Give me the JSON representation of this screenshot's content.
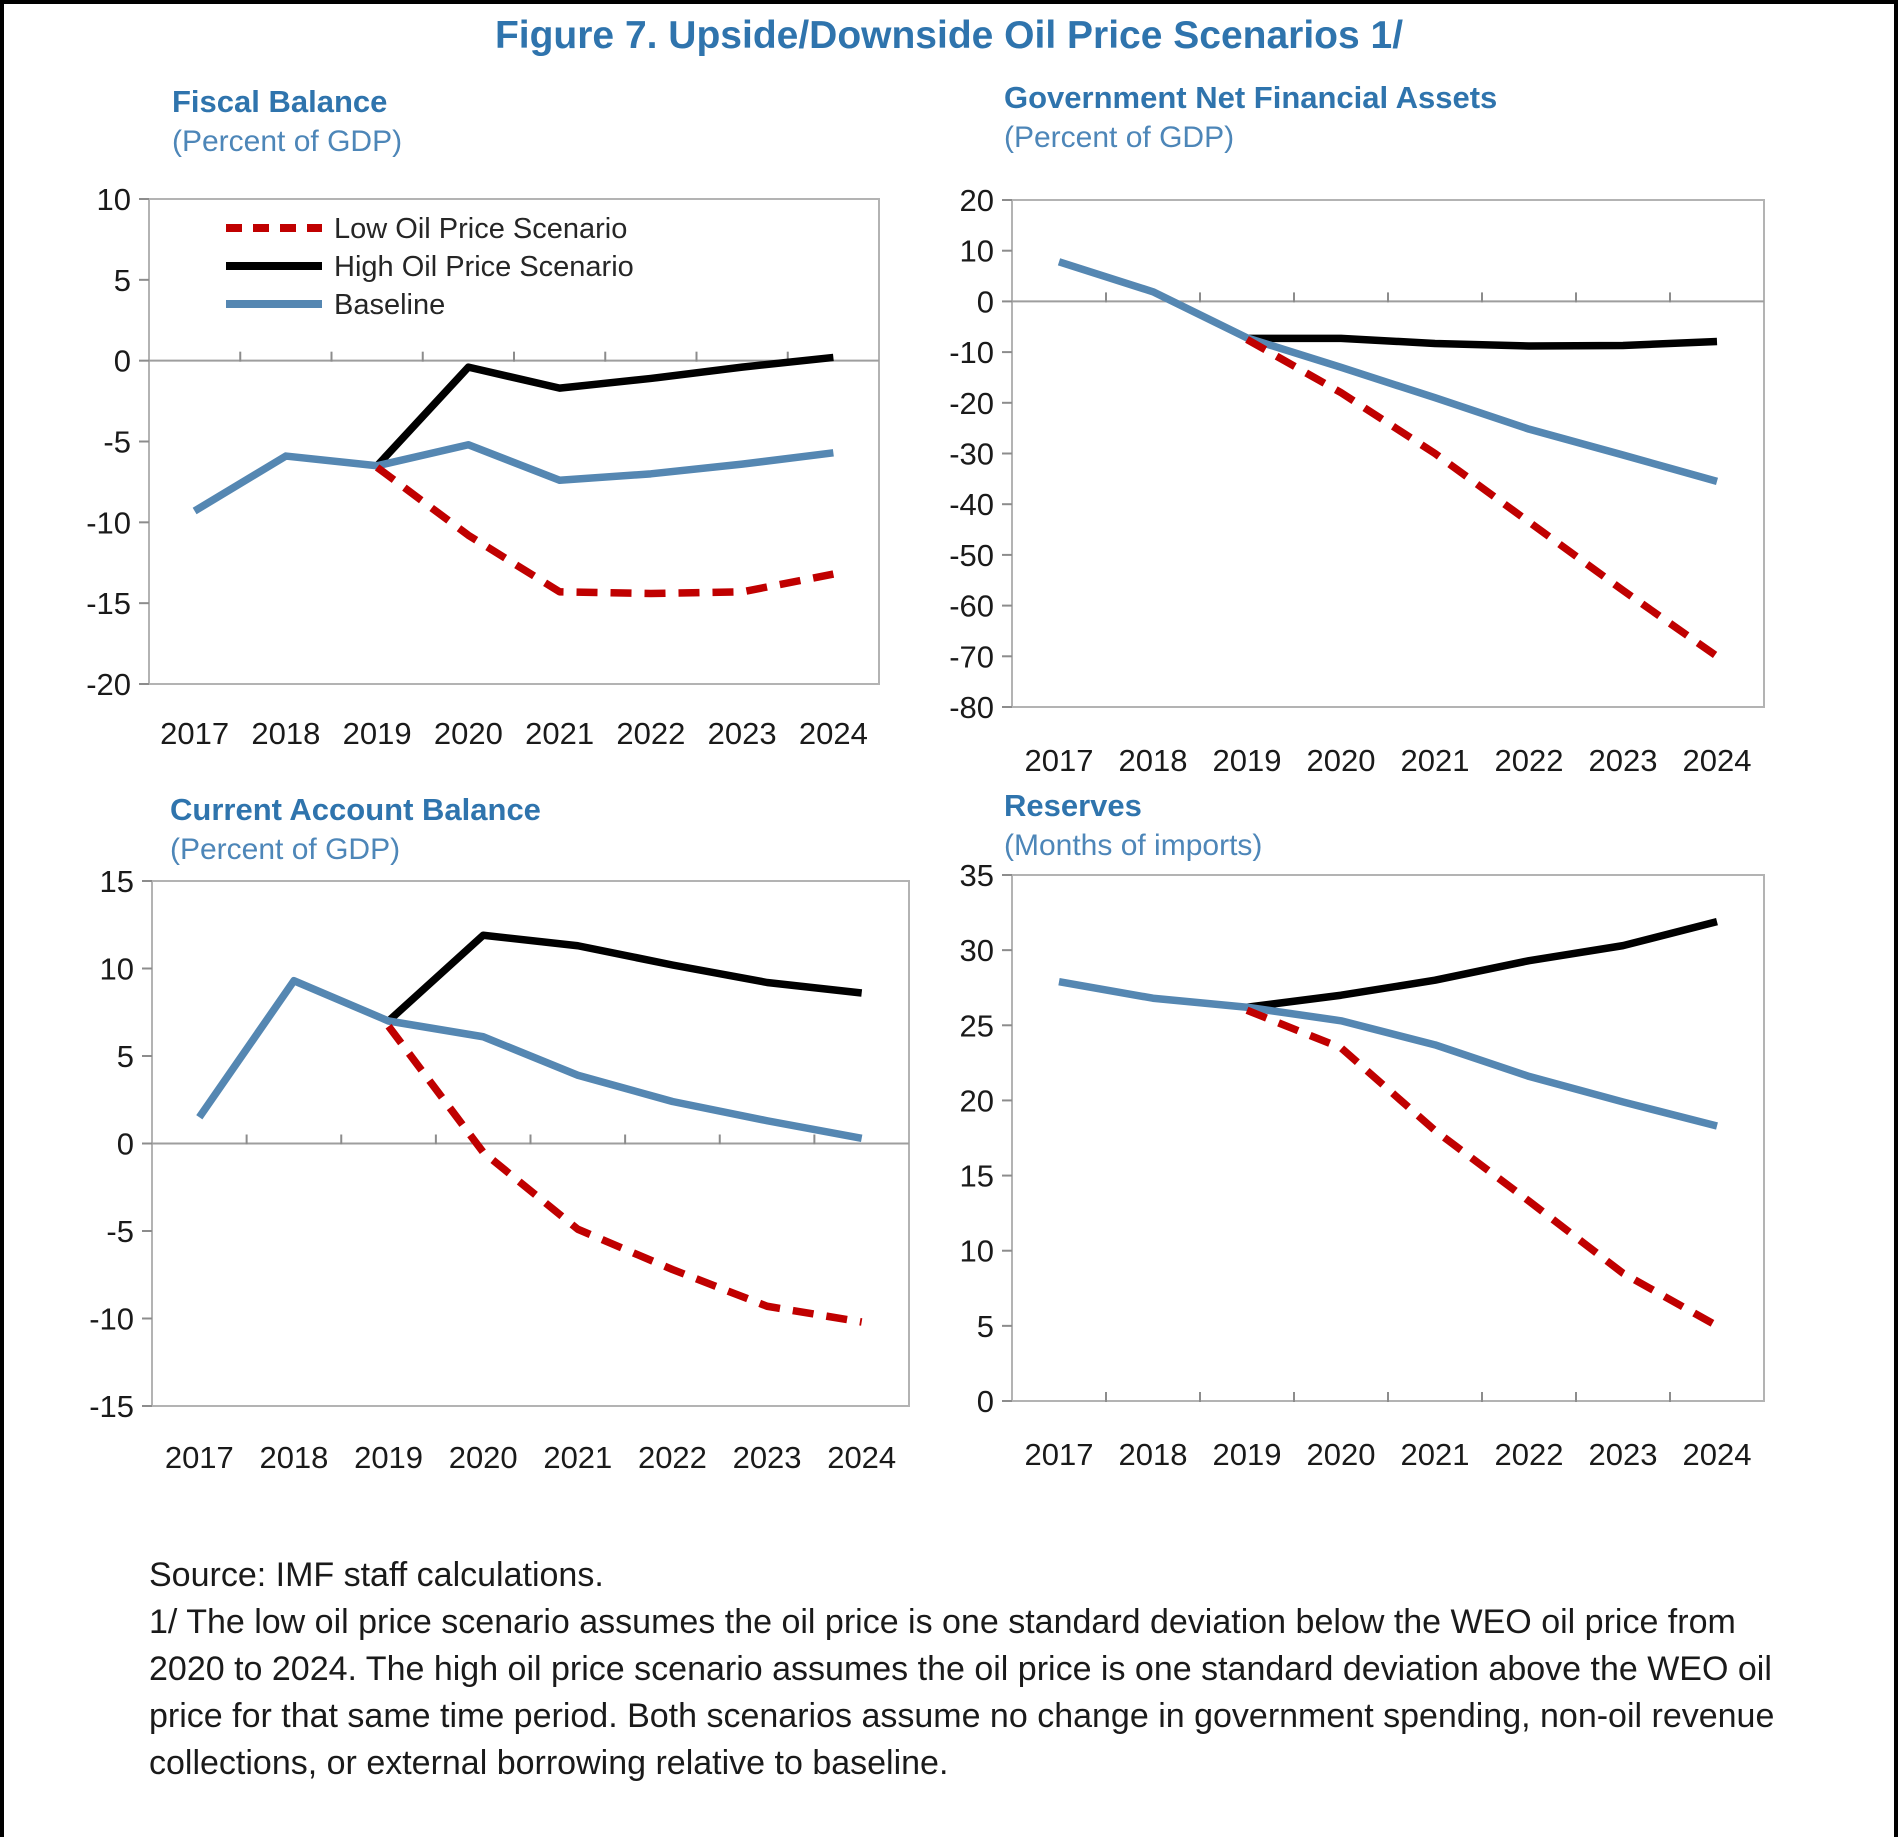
{
  "page": {
    "title": "Figure 7. Upside/Downside Oil Price Scenarios 1/"
  },
  "colors": {
    "title_blue": "#2f74ad",
    "subtitle_blue": "#4d86b8",
    "low": "#c00000",
    "high": "#000000",
    "baseline": "#5587b2",
    "plot_border": "#b3b3b3",
    "zero_line": "#9e9e9e",
    "tick": "#8c8c8c",
    "axis_label": "#1a1a1a",
    "legend_text": "#262626"
  },
  "legend": {
    "items": [
      {
        "key": "low",
        "label": "Low Oil Price Scenario",
        "dashed": true
      },
      {
        "key": "high",
        "label": "High Oil Price Scenario",
        "dashed": false
      },
      {
        "key": "baseline",
        "label": "Baseline",
        "dashed": false
      }
    ]
  },
  "chart_data": [
    {
      "type": "line",
      "title": "Fiscal Balance",
      "subtitle": "(Percent of GDP)",
      "categories": [
        2017,
        2018,
        2019,
        2020,
        2021,
        2022,
        2023,
        2024
      ],
      "ylim": [
        -20,
        10
      ],
      "yticks": [
        10,
        5,
        0,
        -5,
        -10,
        -15,
        -20
      ],
      "grid": false,
      "legend": true,
      "series": [
        {
          "key": "high",
          "name": "High Oil Price Scenario",
          "values": [
            null,
            null,
            -6.5,
            -0.4,
            -1.7,
            -1.1,
            -0.4,
            0.2
          ]
        },
        {
          "key": "baseline",
          "name": "Baseline",
          "values": [
            -9.3,
            -5.9,
            -6.5,
            -5.2,
            -7.4,
            -7.0,
            -6.4,
            -5.7
          ]
        },
        {
          "key": "low",
          "name": "Low Oil Price Scenario",
          "values": [
            null,
            null,
            -6.6,
            -10.8,
            -14.3,
            -14.4,
            -14.3,
            -13.2
          ]
        }
      ]
    },
    {
      "type": "line",
      "title": "Government Net Financial  Assets",
      "subtitle": "(Percent of GDP)",
      "categories": [
        2017,
        2018,
        2019,
        2020,
        2021,
        2022,
        2023,
        2024
      ],
      "ylim": [
        -80,
        20
      ],
      "yticks": [
        20,
        10,
        0,
        -10,
        -20,
        -30,
        -40,
        -50,
        -60,
        -70,
        -80
      ],
      "grid": false,
      "legend": false,
      "series": [
        {
          "key": "high",
          "name": "High Oil Price Scenario",
          "values": [
            null,
            null,
            -7.3,
            -7.3,
            -8.3,
            -8.8,
            -8.7,
            -7.9
          ]
        },
        {
          "key": "baseline",
          "name": "Baseline",
          "values": [
            7.8,
            1.9,
            -7.2,
            -13.0,
            -19.0,
            -25.2,
            -30.3,
            -35.5
          ]
        },
        {
          "key": "low",
          "name": "Low Oil Price Scenario",
          "values": [
            null,
            null,
            -7.5,
            -18.0,
            -30.0,
            -43.5,
            -57.0,
            -70.0
          ]
        }
      ]
    },
    {
      "type": "line",
      "title": "Current Account Balance",
      "subtitle": "(Percent of GDP)",
      "categories": [
        2017,
        2018,
        2019,
        2020,
        2021,
        2022,
        2023,
        2024
      ],
      "ylim": [
        -15,
        15
      ],
      "yticks": [
        15,
        10,
        5,
        0,
        -5,
        -10,
        -15
      ],
      "grid": false,
      "legend": false,
      "series": [
        {
          "key": "high",
          "name": "High Oil Price Scenario",
          "values": [
            null,
            null,
            7.0,
            11.9,
            11.3,
            10.2,
            9.2,
            8.6
          ]
        },
        {
          "key": "baseline",
          "name": "Baseline",
          "values": [
            1.5,
            9.3,
            7.0,
            6.1,
            3.9,
            2.4,
            1.3,
            0.3
          ]
        },
        {
          "key": "low",
          "name": "Low Oil Price Scenario",
          "values": [
            null,
            null,
            6.7,
            -0.5,
            -4.9,
            -7.2,
            -9.3,
            -10.2
          ]
        }
      ]
    },
    {
      "type": "line",
      "title": "Reserves",
      "subtitle": "(Months of imports)",
      "categories": [
        2017,
        2018,
        2019,
        2020,
        2021,
        2022,
        2023,
        2024
      ],
      "ylim": [
        0,
        35
      ],
      "yticks": [
        35,
        30,
        25,
        20,
        15,
        10,
        5,
        0
      ],
      "grid": false,
      "legend": false,
      "series": [
        {
          "key": "high",
          "name": "High Oil Price Scenario",
          "values": [
            null,
            null,
            26.2,
            27.0,
            28.0,
            29.3,
            30.3,
            31.9
          ]
        },
        {
          "key": "baseline",
          "name": "Baseline",
          "values": [
            27.9,
            26.8,
            26.2,
            25.3,
            23.7,
            21.6,
            19.9,
            18.3
          ]
        },
        {
          "key": "low",
          "name": "Low Oil Price Scenario",
          "values": [
            null,
            null,
            26.0,
            23.5,
            18.0,
            13.3,
            8.5,
            5.0
          ]
        }
      ]
    }
  ],
  "footnote": {
    "source": "Source: IMF staff calculations.",
    "note": "1/ The low oil price scenario assumes the oil price is one standard deviation below the WEO oil price from 2020 to 2024.  The high oil price scenario assumes the oil price is one standard deviation above the WEO oil price for that same time period. Both scenarios assume no change in government spending, non-oil revenue collections, or external borrowing relative to baseline."
  }
}
